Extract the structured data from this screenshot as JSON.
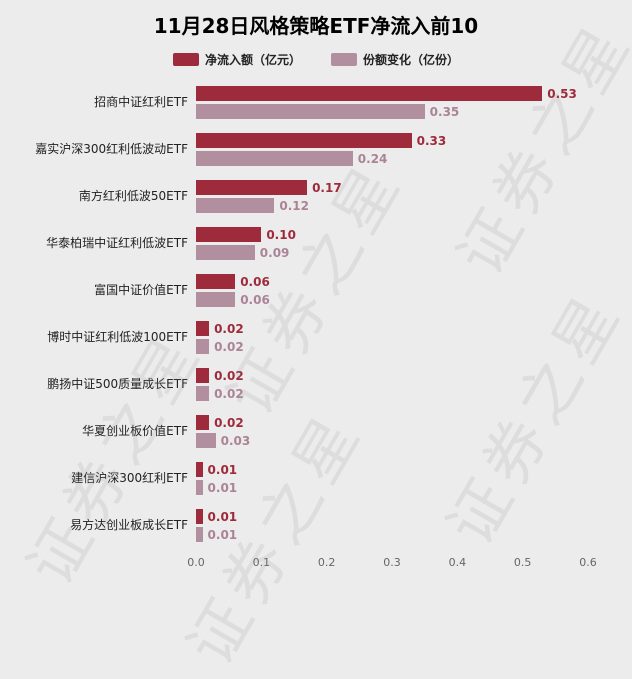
{
  "title": "11月28日风格策略ETF净流入前10",
  "watermark": "证券之星",
  "legend": [
    {
      "label": "净流入额（亿元）",
      "color": "#9e2b3c"
    },
    {
      "label": "份额变化（亿份）",
      "color": "#b28f9e"
    }
  ],
  "colors": {
    "background": "#ececec",
    "net_inflow": "#9e2b3c",
    "share_change": "#b28f9e",
    "net_inflow_label": "#9e2b3c",
    "share_change_label": "#aa8495",
    "axis_text": "#666666"
  },
  "chart_data": {
    "type": "bar",
    "orientation": "horizontal",
    "title": "11月28日风格策略ETF净流入前10",
    "categories": [
      "招商中证红利ETF",
      "嘉实沪深300红利低波动ETF",
      "南方红利低波50ETF",
      "华泰柏瑞中证红利低波ETF",
      "富国中证价值ETF",
      "博时中证红利低波100ETF",
      "鹏扬中证500质量成长ETF",
      "华夏创业板价值ETF",
      "建信沪深300红利ETF",
      "易方达创业板成长ETF"
    ],
    "series": [
      {
        "name": "净流入额（亿元）",
        "color": "#9e2b3c",
        "values": [
          0.53,
          0.33,
          0.17,
          0.1,
          0.06,
          0.02,
          0.02,
          0.02,
          0.01,
          0.01
        ]
      },
      {
        "name": "份额变化（亿份）",
        "color": "#b28f9e",
        "values": [
          0.35,
          0.24,
          0.12,
          0.09,
          0.06,
          0.02,
          0.02,
          0.03,
          0.01,
          0.01
        ]
      }
    ],
    "xlim": [
      0,
      0.6
    ],
    "xticks": [
      "0.0",
      "0.1",
      "0.2",
      "0.3",
      "0.4",
      "0.5",
      "0.6"
    ],
    "grid": false,
    "legend_position": "top"
  }
}
